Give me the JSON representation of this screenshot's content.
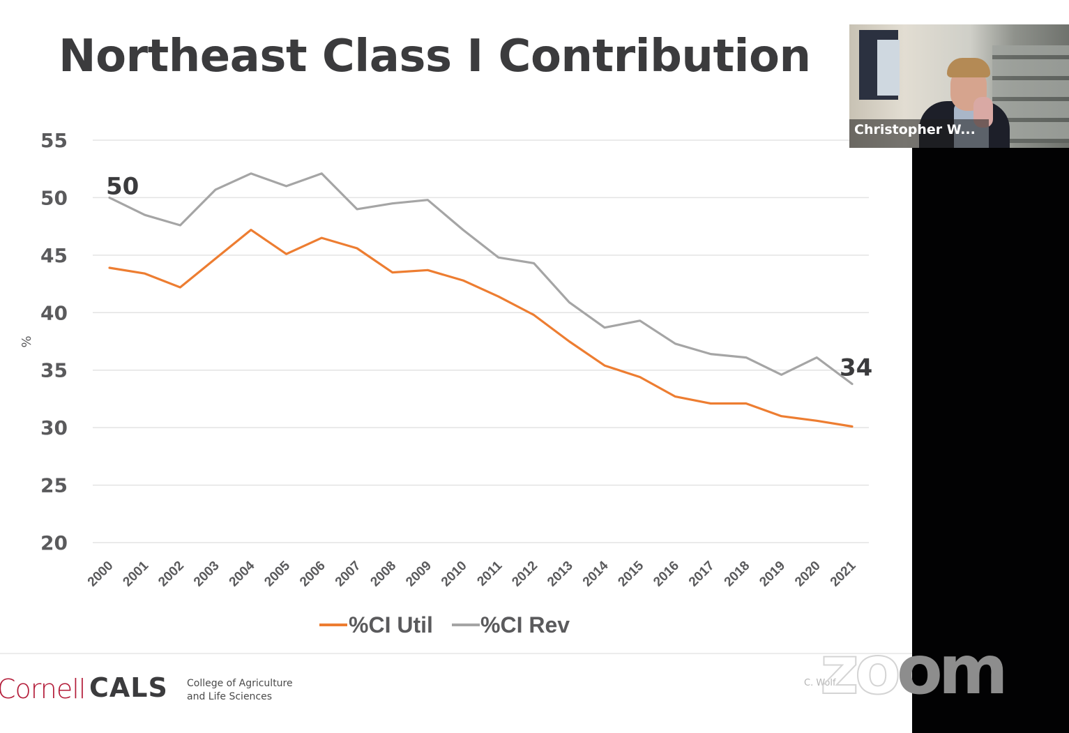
{
  "slide": {
    "title": "Northeast Class I Contribution",
    "footer": {
      "logo_cornell": "Cornell",
      "logo_cals": "CALS",
      "college_line1": "College of Agriculture",
      "college_line2": "and Life Sciences",
      "credit": "C. Wolf"
    }
  },
  "video": {
    "participant_name": "Christopher W..."
  },
  "app": {
    "watermark_left": "zo",
    "watermark_right": "om"
  },
  "colors": {
    "util": "#ed7d31",
    "rev": "#a5a5a5",
    "grid": "#e3e3e3",
    "title": "#3b3b3d",
    "cornell_red": "#b31b38"
  },
  "chart_data": {
    "type": "line",
    "title": "Northeast Class I Contribution",
    "xlabel": "",
    "ylabel": "%",
    "ylim": [
      20,
      55
    ],
    "yticks": [
      "55",
      "50",
      "45",
      "40",
      "35",
      "30",
      "25",
      "20"
    ],
    "ytick_values": [
      55,
      50,
      45,
      40,
      35,
      30,
      25,
      20
    ],
    "grid": true,
    "legend_position": "bottom",
    "categories": [
      "2000",
      "2001",
      "2002",
      "2003",
      "2004",
      "2005",
      "2006",
      "2007",
      "2008",
      "2009",
      "2010",
      "2011",
      "2012",
      "2013",
      "2014",
      "2015",
      "2016",
      "2017",
      "2018",
      "2019",
      "2020",
      "2021"
    ],
    "series": [
      {
        "name": "%CI Util",
        "color": "#ed7d31",
        "values": [
          43.9,
          43.4,
          42.2,
          44.7,
          47.2,
          45.1,
          46.5,
          45.6,
          43.5,
          43.7,
          42.8,
          41.4,
          39.8,
          37.5,
          35.4,
          34.4,
          32.7,
          32.1,
          32.1,
          31.0,
          30.6,
          30.1
        ]
      },
      {
        "name": "%CI Rev",
        "color": "#a5a5a5",
        "values": [
          50.0,
          48.5,
          47.6,
          50.7,
          52.1,
          51.0,
          52.1,
          49.0,
          49.5,
          49.8,
          47.2,
          44.8,
          44.3,
          40.9,
          38.7,
          39.3,
          37.3,
          36.4,
          36.1,
          34.6,
          36.1,
          33.8
        ]
      }
    ],
    "annotations": [
      {
        "text": "50",
        "series": "%CI Rev",
        "category": "2000"
      },
      {
        "text": "34",
        "series": "%CI Rev",
        "category": "2021"
      }
    ]
  }
}
